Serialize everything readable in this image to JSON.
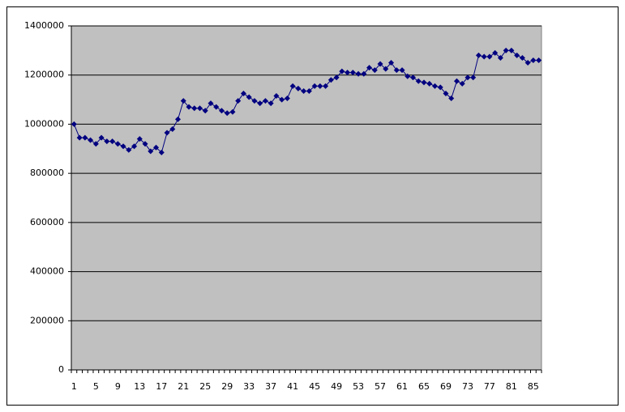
{
  "chart_data": {
    "type": "line",
    "color": "#000080",
    "plot_color": "#c0c0c0",
    "grid": true,
    "marker": "diamond",
    "categories": [
      1,
      null,
      null,
      null,
      5,
      null,
      null,
      null,
      9,
      null,
      null,
      null,
      13,
      null,
      null,
      null,
      17,
      null,
      null,
      null,
      21,
      null,
      null,
      null,
      25,
      null,
      null,
      null,
      29,
      null,
      null,
      null,
      33,
      null,
      null,
      null,
      37,
      null,
      null,
      null,
      41,
      null,
      null,
      null,
      45,
      null,
      null,
      null,
      49,
      null,
      null,
      null,
      53,
      null,
      null,
      null,
      57,
      null,
      null,
      null,
      61,
      null,
      null,
      null,
      65,
      null,
      null,
      null,
      69,
      null,
      null,
      null,
      73,
      null,
      null,
      null,
      77,
      null,
      null,
      null,
      81,
      null,
      null,
      null,
      85,
      null
    ],
    "values": [
      1000000,
      945000,
      945000,
      935000,
      920000,
      945000,
      930000,
      930000,
      920000,
      910000,
      895000,
      910000,
      940000,
      920000,
      890000,
      905000,
      885000,
      965000,
      980000,
      1020000,
      1095000,
      1070000,
      1065000,
      1065000,
      1055000,
      1085000,
      1070000,
      1055000,
      1045000,
      1050000,
      1095000,
      1125000,
      1110000,
      1095000,
      1085000,
      1095000,
      1085000,
      1115000,
      1100000,
      1105000,
      1155000,
      1145000,
      1135000,
      1135000,
      1155000,
      1155000,
      1155000,
      1180000,
      1190000,
      1215000,
      1210000,
      1210000,
      1205000,
      1205000,
      1230000,
      1220000,
      1245000,
      1225000,
      1250000,
      1220000,
      1220000,
      1195000,
      1190000,
      1175000,
      1170000,
      1165000,
      1155000,
      1150000,
      1125000,
      1105000,
      1175000,
      1165000,
      1190000,
      1190000,
      1280000,
      1275000,
      1275000,
      1290000,
      1270000,
      1300000,
      1300000,
      1280000,
      1270000,
      1250000,
      1260000,
      1260000
    ],
    "ylim": [
      0,
      1400000
    ],
    "yticks": [
      0,
      200000,
      400000,
      600000,
      800000,
      1000000,
      1200000,
      1400000
    ]
  }
}
